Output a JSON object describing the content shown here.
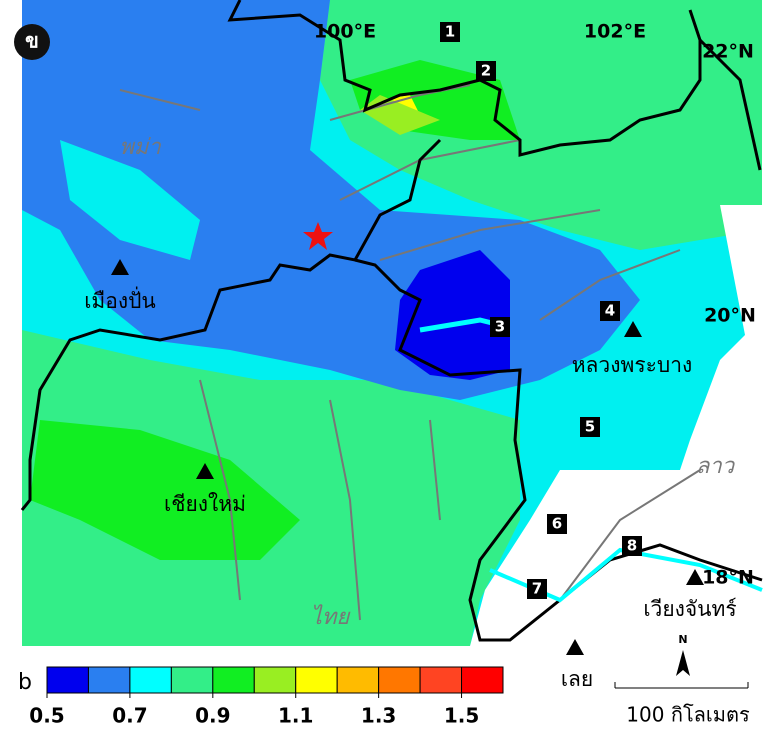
{
  "panel_label": "ข",
  "grid_labels": [
    "100°E",
    "102°E",
    "22°N",
    "20°N",
    "18°N"
  ],
  "cities": [
    "เมืองปั่น",
    "เชียงใหม่",
    "หลวงพระบาง",
    "เวียงจันทร์",
    "เลย"
  ],
  "regions": [
    "พม่า",
    "ไทย",
    "ลาว"
  ],
  "fault_numbers": [
    "1",
    "2",
    "3",
    "4",
    "5",
    "6",
    "7",
    "8"
  ],
  "colorbar": {
    "label": "b",
    "lim": [
      0.5,
      1.6
    ],
    "ticks": [
      0.5,
      0.7,
      0.9,
      1.1,
      1.3,
      1.5
    ],
    "colors": [
      "#0000ee",
      "#2a7ff0",
      "#00ffff",
      "#33ee88",
      "#11ee22",
      "#99ee22",
      "#ffff00",
      "#ffbb00",
      "#ff7700",
      "#ff4422",
      "#ff0000"
    ]
  },
  "north": "N",
  "scale_label": "100 กิโลเมตร"
}
